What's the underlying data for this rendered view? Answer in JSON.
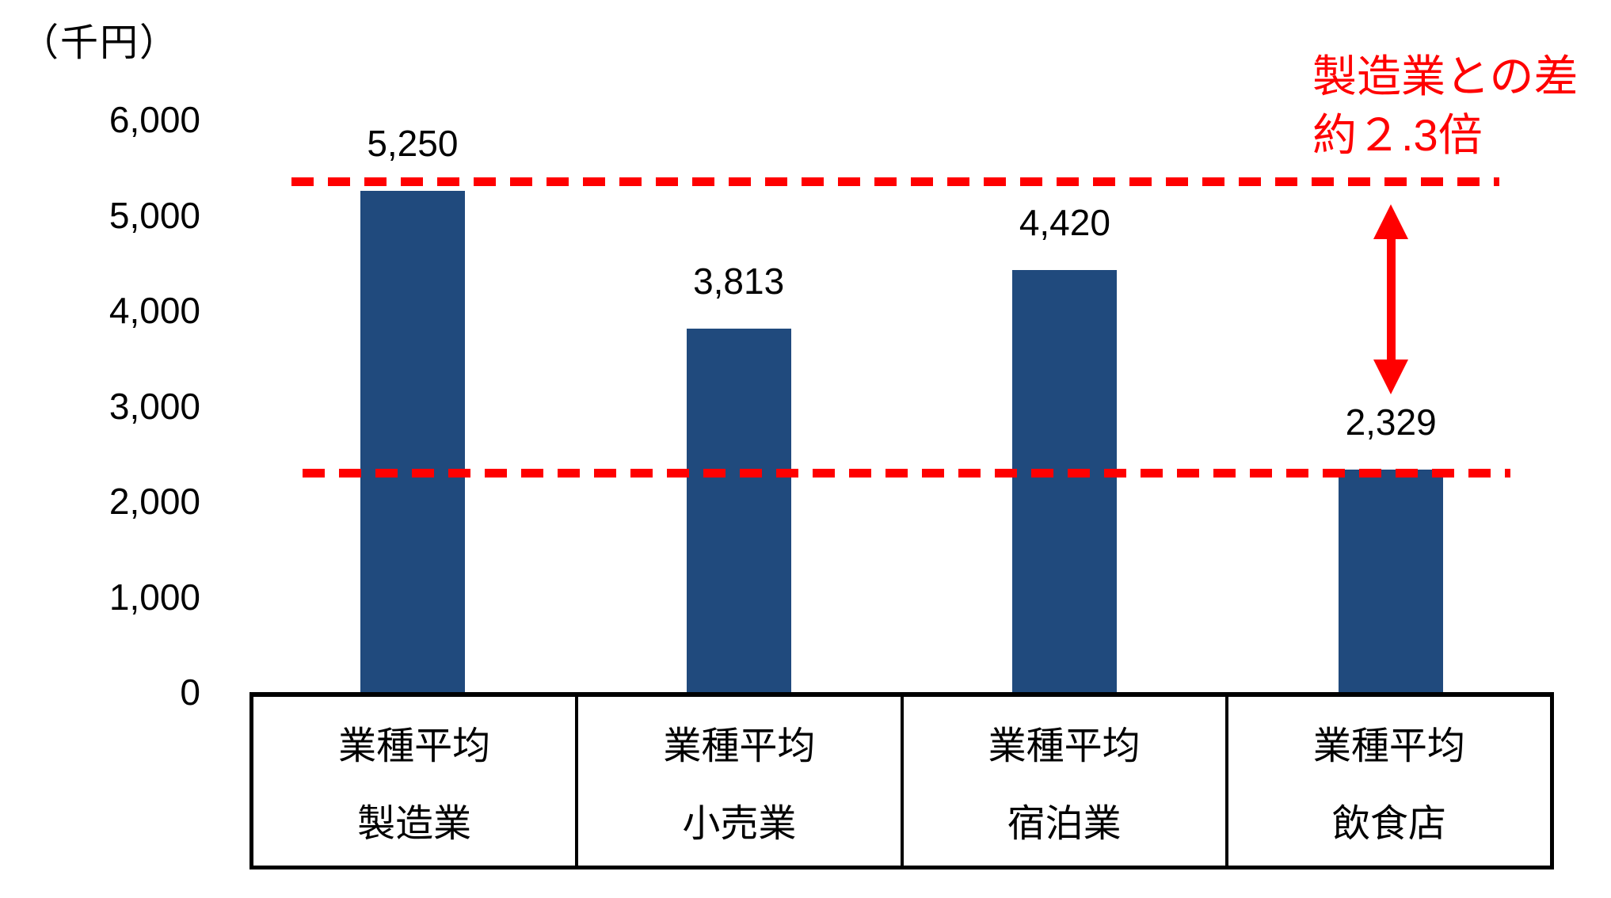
{
  "chart_data": {
    "type": "bar",
    "unit_label": "（千円）",
    "categories": [
      {
        "line1": "業種平均",
        "line2": "製造業"
      },
      {
        "line1": "業種平均",
        "line2": "小売業"
      },
      {
        "line1": "業種平均",
        "line2": "宿泊業"
      },
      {
        "line1": "業種平均",
        "line2": "飲食店"
      }
    ],
    "values": [
      5250,
      3813,
      4420,
      2329
    ],
    "value_labels": [
      "5,250",
      "3,813",
      "4,420",
      "2,329"
    ],
    "ylim": [
      0,
      6000
    ],
    "yticks": [
      {
        "value": 0,
        "label": "0"
      },
      {
        "value": 1000,
        "label": "1,000"
      },
      {
        "value": 2000,
        "label": "2,000"
      },
      {
        "value": 3000,
        "label": "3,000"
      },
      {
        "value": 4000,
        "label": "4,000"
      },
      {
        "value": 5000,
        "label": "5,000"
      },
      {
        "value": 6000,
        "label": "6,000"
      }
    ],
    "grid": false,
    "legend": false,
    "annotation": {
      "line1": "製造業との差",
      "line2": "約２.3倍"
    },
    "reference_lines": [
      {
        "value": 5250,
        "style": "dashed"
      },
      {
        "value": 2329,
        "style": "dashed"
      }
    ],
    "difference_arrow": {
      "from_value": 5250,
      "to_value": 2329
    },
    "colors": {
      "bar": "#204A7D",
      "accent": "#FF0000",
      "text": "#000000",
      "axis": "#000000"
    }
  }
}
